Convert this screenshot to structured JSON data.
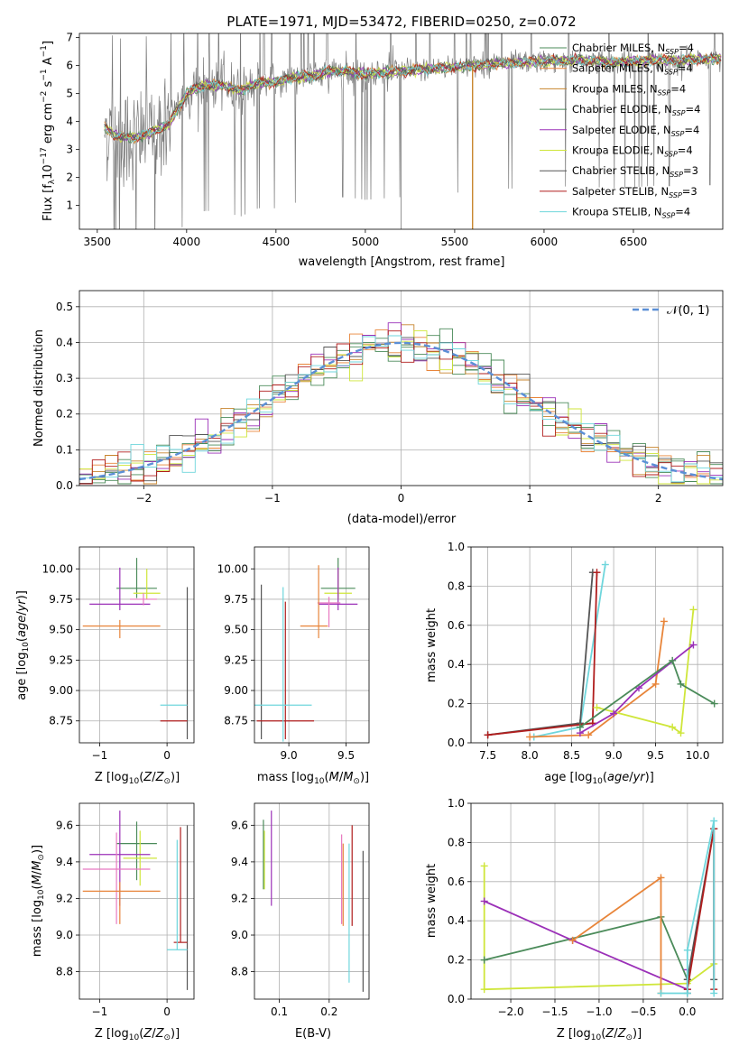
{
  "figure_title": "PLATE=1971, MJD=53472, FIBERID=0250, z=0.072",
  "legend_spectrum": [
    {
      "label": "Chabrier MILES, N",
      "sub": "SSP",
      "tail": "=4",
      "color": "#4b8b5a"
    },
    {
      "label": "Salpeter MILES, N",
      "sub": "SSP",
      "tail": "=4",
      "color": "#e8853a"
    },
    {
      "label": "Kroupa MILES, N",
      "sub": "SSP",
      "tail": "=4",
      "color": "#c8852e"
    },
    {
      "label": "Chabrier ELODIE, N",
      "sub": "SSP",
      "tail": "=4",
      "color": "#4b8b5a"
    },
    {
      "label": "Salpeter ELODIE, N",
      "sub": "SSP",
      "tail": "=4",
      "color": "#9b30b8"
    },
    {
      "label": "Kroupa ELODIE, N",
      "sub": "SSP",
      "tail": "=4",
      "color": "#cfe63a"
    },
    {
      "label": "Chabrier STELIB, N",
      "sub": "SSP",
      "tail": "=3",
      "color": "#555555"
    },
    {
      "label": "Salpeter STELIB, N",
      "sub": "SSP",
      "tail": "=3",
      "color": "#b01d1d"
    },
    {
      "label": "Kroupa STELIB, N",
      "sub": "SSP",
      "tail": "=4",
      "color": "#6fd6dc"
    }
  ],
  "legend_hist": {
    "label": "𝒩(0, 1)",
    "color": "#5b8fd6"
  },
  "chart_data": [
    {
      "type": "line",
      "id": "spectrum",
      "title": "PLATE=1971, MJD=53472, FIBERID=0250, z=0.072",
      "xlabel": "wavelength [Angstrom, rest frame]",
      "ylabel": "Flux [f_λ 10^-17 erg cm^-2 s^-1 A^-1]",
      "xlim": [
        3400,
        7000
      ],
      "ylim": [
        0.15,
        7.15
      ],
      "xticks": [
        3500,
        4000,
        4500,
        5000,
        5500,
        6000,
        6500
      ],
      "yticks": [
        1,
        2,
        3,
        4,
        5,
        6,
        7
      ],
      "continuum_x": [
        3540,
        3600,
        3700,
        3800,
        3900,
        4000,
        4100,
        4200,
        4300,
        4400,
        4500,
        4600,
        4700,
        4800,
        4900,
        5000,
        5200,
        5400,
        5600,
        5800,
        6000,
        6200,
        6400,
        6600,
        6800,
        6990
      ],
      "continuum_y": [
        3.8,
        3.5,
        3.4,
        3.6,
        3.9,
        5.0,
        5.3,
        5.3,
        5.1,
        5.4,
        5.4,
        5.6,
        5.6,
        5.8,
        5.8,
        5.7,
        5.8,
        5.9,
        6.0,
        6.1,
        6.15,
        6.2,
        6.1,
        6.2,
        6.2,
        6.25
      ],
      "series": [
        {
          "name": "Chabrier MILES",
          "color": "#4b8b5a"
        },
        {
          "name": "Salpeter MILES",
          "color": "#e8853a"
        },
        {
          "name": "Kroupa MILES",
          "color": "#c8852e"
        },
        {
          "name": "Chabrier ELODIE",
          "color": "#4b8b5a"
        },
        {
          "name": "Salpeter ELODIE",
          "color": "#9b30b8"
        },
        {
          "name": "Kroupa ELODIE",
          "color": "#cfe63a"
        },
        {
          "name": "Chabrier STELIB",
          "color": "#555555"
        },
        {
          "name": "Salpeter STELIB",
          "color": "#b01d1d"
        },
        {
          "name": "Kroupa STELIB",
          "color": "#6fd6dc"
        }
      ]
    },
    {
      "type": "bar",
      "id": "residuals",
      "xlabel": "(data-model)/error",
      "ylabel": "Normed distribution",
      "xlim": [
        -2.5,
        2.5
      ],
      "ylim": [
        0,
        0.545
      ],
      "xticks": [
        -2,
        -1,
        0,
        1,
        2
      ],
      "yticks": [
        0.0,
        0.1,
        0.2,
        0.3,
        0.4,
        0.5
      ],
      "bin_width": 0.1,
      "gaussian": {
        "name": "𝒩(0, 1)",
        "mu": 0,
        "sigma": 1
      }
    },
    {
      "type": "scatter",
      "id": "age_vs_Z",
      "xlabel": "Z [log10(Z/Z⊙)]",
      "ylabel": "age [log10(age/yr)]",
      "xlim": [
        -1.3,
        0.4
      ],
      "ylim": [
        8.57,
        10.18
      ],
      "xticks": [
        -1,
        0
      ],
      "yticks": [
        8.75,
        9.0,
        9.25,
        9.5,
        9.75,
        10.0
      ],
      "points": [
        {
          "x": -0.45,
          "y": 9.84,
          "xe": [
            0.3,
            0.3
          ],
          "ye": [
            0.08,
            0.25
          ],
          "color": "#4b8b5a"
        },
        {
          "x": -0.3,
          "y": 9.8,
          "xe": [
            0.2,
            0.2
          ],
          "ye": [
            0.05,
            0.2
          ],
          "color": "#cfe63a"
        },
        {
          "x": -0.7,
          "y": 9.71,
          "xe": [
            0.45,
            0.45
          ],
          "ye": [
            0.05,
            0.3
          ],
          "color": "#9b30b8"
        },
        {
          "x": -0.35,
          "y": 9.75,
          "xe": [
            0.2,
            0.2
          ],
          "ye": [
            0.05,
            0.05
          ],
          "color": "#e879c0"
        },
        {
          "x": -0.7,
          "y": 9.53,
          "xe": [
            0.55,
            0.6
          ],
          "ye": [
            0.1,
            0.05
          ],
          "color": "#e8853a"
        },
        {
          "x": 0.3,
          "y": 8.75,
          "xe": [
            0.0,
            0.0
          ],
          "ye": [
            0.15,
            1.1
          ],
          "color": "#555555"
        },
        {
          "x": 0.1,
          "y": 8.75,
          "xe": [
            0.2,
            0.2
          ],
          "ye": [
            0.0,
            0.0
          ],
          "color": "#b01d1d"
        },
        {
          "x": 0.1,
          "y": 8.88,
          "xe": [
            0.2,
            0.2
          ],
          "ye": [
            0.0,
            0.0
          ],
          "color": "#6fd6dc"
        }
      ]
    },
    {
      "type": "scatter",
      "id": "age_vs_mass",
      "xlabel": "mass [log10(M/M⊙)]",
      "ylabel": "",
      "xlim": [
        8.7,
        9.7
      ],
      "ylim": [
        8.57,
        10.18
      ],
      "xticks": [
        9.0,
        9.5
      ],
      "yticks": [
        8.75,
        9.0,
        9.25,
        9.5,
        9.75,
        10.0
      ],
      "points": [
        {
          "x": 9.43,
          "y": 9.84,
          "xe": [
            0.15,
            0.15
          ],
          "ye": [
            0.08,
            0.25
          ],
          "color": "#4b8b5a"
        },
        {
          "x": 9.43,
          "y": 9.8,
          "xe": [
            0.12,
            0.12
          ],
          "ye": [
            0.05,
            0.2
          ],
          "color": "#cfe63a"
        },
        {
          "x": 9.43,
          "y": 9.71,
          "xe": [
            0.17,
            0.17
          ],
          "ye": [
            0.05,
            0.3
          ],
          "color": "#9b30b8"
        },
        {
          "x": 9.35,
          "y": 9.72,
          "xe": [
            0.1,
            0.1
          ],
          "ye": [
            0.2,
            0.05
          ],
          "color": "#e879c0"
        },
        {
          "x": 9.26,
          "y": 9.53,
          "xe": [
            0.16,
            0.08
          ],
          "ye": [
            0.1,
            0.5
          ],
          "color": "#e8853a"
        },
        {
          "x": 8.76,
          "y": 9.1,
          "xe": [
            0.0,
            0.0
          ],
          "ye": [
            0.5,
            0.77
          ],
          "color": "#555555"
        },
        {
          "x": 8.97,
          "y": 8.75,
          "xe": [
            0.25,
            0.25
          ],
          "ye": [
            0.15,
            0.98
          ],
          "color": "#b01d1d"
        },
        {
          "x": 8.95,
          "y": 8.88,
          "xe": [
            0.25,
            0.25
          ],
          "ye": [
            0.3,
            0.97
          ],
          "color": "#6fd6dc"
        }
      ]
    },
    {
      "type": "line",
      "id": "weight_vs_age",
      "xlabel": "age [log10(age/yr)]",
      "ylabel": "mass weight",
      "xlim": [
        7.3,
        10.3
      ],
      "ylim": [
        0,
        1.0
      ],
      "xticks": [
        7.5,
        8.0,
        8.5,
        9.0,
        9.5,
        10.0
      ],
      "yticks": [
        0.0,
        0.2,
        0.4,
        0.6,
        0.8,
        1.0
      ],
      "series": [
        {
          "name": "Kroupa STELIB",
          "color": "#6fd6dc",
          "x": [
            8.05,
            8.6,
            8.9
          ],
          "y": [
            0.03,
            0.08,
            0.91
          ]
        },
        {
          "name": "Chabrier STELIB",
          "color": "#555555",
          "x": [
            7.5,
            8.6,
            8.75
          ],
          "y": [
            0.04,
            0.1,
            0.87
          ]
        },
        {
          "name": "Salpeter STELIB",
          "color": "#b01d1d",
          "x": [
            7.5,
            8.75,
            8.8
          ],
          "y": [
            0.04,
            0.1,
            0.87
          ]
        },
        {
          "name": "Salpeter MILES",
          "color": "#e8853a",
          "x": [
            8.0,
            8.7,
            9.5,
            9.6
          ],
          "y": [
            0.03,
            0.04,
            0.3,
            0.62
          ]
        },
        {
          "name": "Kroupa ELODIE",
          "color": "#cfe63a",
          "x": [
            8.8,
            9.7,
            9.8,
            9.95
          ],
          "y": [
            0.18,
            0.08,
            0.05,
            0.68
          ]
        },
        {
          "name": "Salpeter ELODIE",
          "color": "#9b30b8",
          "x": [
            8.6,
            9.0,
            9.3,
            9.95
          ],
          "y": [
            0.05,
            0.15,
            0.28,
            0.5
          ]
        },
        {
          "name": "Chabrier ELODIE",
          "color": "#4b8b5a",
          "x": [
            8.6,
            9.7,
            9.8,
            10.2
          ],
          "y": [
            0.08,
            0.42,
            0.3,
            0.2
          ]
        }
      ]
    },
    {
      "type": "scatter",
      "id": "mass_vs_Z",
      "xlabel": "Z [log10(Z/Z⊙)]",
      "ylabel": "mass [log10(M/M⊙)]",
      "xlim": [
        -1.3,
        0.4
      ],
      "ylim": [
        8.65,
        9.72
      ],
      "xticks": [
        -1,
        0
      ],
      "yticks": [
        8.8,
        9.0,
        9.2,
        9.4,
        9.6
      ],
      "points": [
        {
          "x": -0.45,
          "y": 9.5,
          "xe": [
            0.3,
            0.3
          ],
          "ye": [
            0.2,
            0.12
          ],
          "color": "#4b8b5a"
        },
        {
          "x": -0.4,
          "y": 9.42,
          "xe": [
            0.25,
            0.25
          ],
          "ye": [
            0.15,
            0.15
          ],
          "color": "#cfe63a"
        },
        {
          "x": -0.7,
          "y": 9.44,
          "xe": [
            0.45,
            0.45
          ],
          "ye": [
            0.28,
            0.24
          ],
          "color": "#9b30b8"
        },
        {
          "x": -0.75,
          "y": 9.36,
          "xe": [
            0.5,
            0.5
          ],
          "ye": [
            0.3,
            0.2
          ],
          "color": "#e879c0"
        },
        {
          "x": -0.7,
          "y": 9.24,
          "xe": [
            0.55,
            0.6
          ],
          "ye": [
            0.18,
            0.05
          ],
          "color": "#e8853a"
        },
        {
          "x": 0.3,
          "y": 9.0,
          "xe": [
            0.0,
            0.0
          ],
          "ye": [
            0.3,
            0.6
          ],
          "color": "#555555"
        },
        {
          "x": 0.2,
          "y": 8.96,
          "xe": [
            0.1,
            0.1
          ],
          "ye": [
            0.0,
            0.63
          ],
          "color": "#b01d1d"
        },
        {
          "x": 0.15,
          "y": 8.92,
          "xe": [
            0.15,
            0.15
          ],
          "ye": [
            0.0,
            0.6
          ],
          "color": "#6fd6dc"
        }
      ]
    },
    {
      "type": "scatter",
      "id": "mass_vs_EBV",
      "xlabel": "E(B-V)",
      "ylabel": "",
      "xlim": [
        0.05,
        0.28
      ],
      "ylim": [
        8.65,
        9.72
      ],
      "xticks": [
        0.1,
        0.2
      ],
      "yticks": [
        8.8,
        9.0,
        9.2,
        9.4,
        9.6
      ],
      "points": [
        {
          "x": 0.068,
          "y": 9.45,
          "xe": [
            0,
            0
          ],
          "ye": [
            0.2,
            0.18
          ],
          "color": "#4b8b5a"
        },
        {
          "x": 0.07,
          "y": 9.45,
          "xe": [
            0,
            0
          ],
          "ye": [
            0.2,
            0.12
          ],
          "color": "#cfe63a"
        },
        {
          "x": 0.084,
          "y": 9.4,
          "xe": [
            0,
            0
          ],
          "ye": [
            0.24,
            0.28
          ],
          "color": "#9b30b8"
        },
        {
          "x": 0.225,
          "y": 9.3,
          "xe": [
            0,
            0
          ],
          "ye": [
            0.24,
            0.25
          ],
          "color": "#e879c0"
        },
        {
          "x": 0.228,
          "y": 9.3,
          "xe": [
            0,
            0
          ],
          "ye": [
            0.25,
            0.2
          ],
          "color": "#e8853a"
        },
        {
          "x": 0.268,
          "y": 9.1,
          "xe": [
            0,
            0
          ],
          "ye": [
            0.41,
            0.36
          ],
          "color": "#555555"
        },
        {
          "x": 0.246,
          "y": 9.3,
          "xe": [
            0,
            0
          ],
          "ye": [
            0.25,
            0.3
          ],
          "color": "#b01d1d"
        },
        {
          "x": 0.24,
          "y": 9.15,
          "xe": [
            0,
            0
          ],
          "ye": [
            0.41,
            0.35
          ],
          "color": "#6fd6dc"
        }
      ]
    },
    {
      "type": "line",
      "id": "weight_vs_Z",
      "xlabel": "Z [log10(Z/Z⊙)]",
      "ylabel": "mass weight",
      "xlim": [
        -2.45,
        0.4
      ],
      "ylim": [
        0,
        1.0
      ],
      "xticks": [
        -2.0,
        -1.5,
        -1.0,
        -0.5,
        0.0
      ],
      "yticks": [
        0.0,
        0.2,
        0.4,
        0.6,
        0.8,
        1.0
      ],
      "series": [
        {
          "name": "Kroupa ELODIE",
          "color": "#cfe63a",
          "x": [
            -2.3,
            -2.3,
            0.0,
            0.3
          ],
          "y": [
            0.68,
            0.05,
            0.08,
            0.18
          ]
        },
        {
          "name": "Chabrier ELODIE",
          "color": "#4b8b5a",
          "x": [
            -2.3,
            -0.3,
            0.0
          ],
          "y": [
            0.2,
            0.42,
            0.1
          ]
        },
        {
          "name": "Salpeter ELODIE",
          "color": "#9b30b8",
          "x": [
            -2.3,
            -1.3,
            0.0,
            0.0
          ],
          "y": [
            0.5,
            0.3,
            0.05,
            0.15
          ]
        },
        {
          "name": "Salpeter MILES",
          "color": "#e8853a",
          "x": [
            -0.3,
            -0.3,
            -1.3
          ],
          "y": [
            0.03,
            0.62,
            0.3
          ]
        },
        {
          "name": "Chabrier STELIB",
          "color": "#555555",
          "x": [
            0.0,
            0.0,
            0.3,
            0.3
          ],
          "y": [
            0.03,
            0.1,
            0.87,
            0.1
          ]
        },
        {
          "name": "Salpeter STELIB",
          "color": "#b01d1d",
          "x": [
            0.0,
            0.3,
            0.3
          ],
          "y": [
            0.05,
            0.87,
            0.05
          ]
        },
        {
          "name": "Kroupa STELIB",
          "color": "#6fd6dc",
          "x": [
            -0.3,
            0.0,
            0.0,
            0.3,
            0.3
          ],
          "y": [
            0.03,
            0.03,
            0.25,
            0.91,
            0.03
          ]
        }
      ]
    }
  ]
}
